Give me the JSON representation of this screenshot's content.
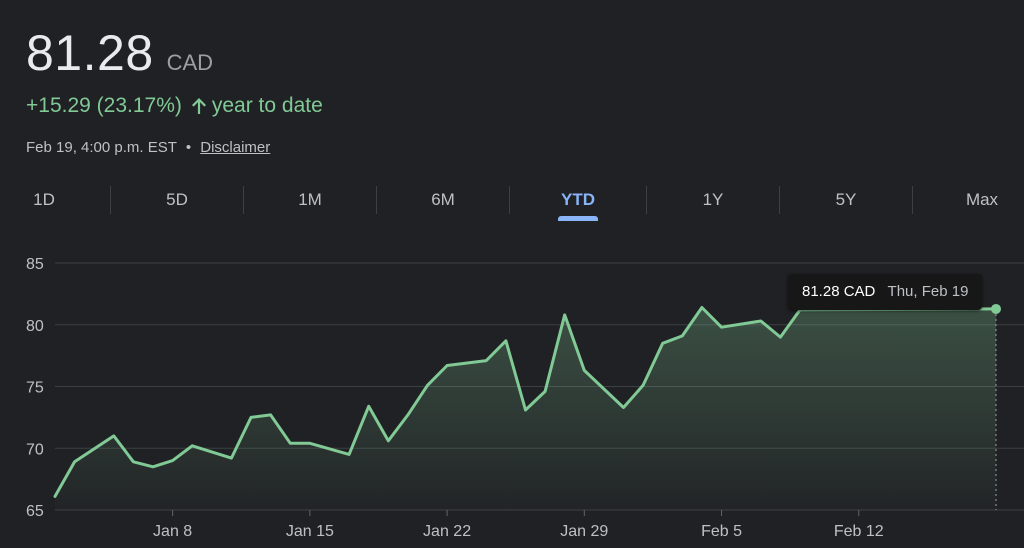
{
  "quote": {
    "price": "81.28",
    "currency": "CAD",
    "change": "+15.29 (23.17%)",
    "period_label": "year to date",
    "timestamp": "Feb 19, 4:00 p.m. EST",
    "separator": "•",
    "disclaimer_label": "Disclaimer",
    "positive_color": "#81c995"
  },
  "range_tabs": [
    {
      "label": "1D",
      "active": false
    },
    {
      "label": "5D",
      "active": false
    },
    {
      "label": "1M",
      "active": false
    },
    {
      "label": "6M",
      "active": false
    },
    {
      "label": "YTD",
      "active": true
    },
    {
      "label": "1Y",
      "active": false
    },
    {
      "label": "5Y",
      "active": false
    },
    {
      "label": "Max",
      "active": false
    }
  ],
  "tooltip": {
    "price": "81.28 CAD",
    "date": "Thu, Feb 19"
  },
  "chart_data": {
    "type": "area",
    "xlabel": "",
    "ylabel": "",
    "ylim": [
      65,
      85
    ],
    "yticks": [
      65,
      70,
      75,
      80,
      85
    ],
    "xlim": [
      "2026-01-02",
      "2026-02-19"
    ],
    "xticks": [
      {
        "label": "Jan 8",
        "date": "2026-01-08"
      },
      {
        "label": "Jan 15",
        "date": "2026-01-15"
      },
      {
        "label": "Jan 22",
        "date": "2026-01-22"
      },
      {
        "label": "Jan 29",
        "date": "2026-01-29"
      },
      {
        "label": "Feb 5",
        "date": "2026-02-05"
      },
      {
        "label": "Feb 12",
        "date": "2026-02-12"
      }
    ],
    "grid": true,
    "line_color": "#81c995",
    "points": [
      {
        "x": "2026-01-02",
        "y": 66.1
      },
      {
        "x": "2026-01-03",
        "y": 68.9
      },
      {
        "x": "2026-01-05",
        "y": 71.0
      },
      {
        "x": "2026-01-06",
        "y": 68.9
      },
      {
        "x": "2026-01-07",
        "y": 68.5
      },
      {
        "x": "2026-01-08",
        "y": 69.0
      },
      {
        "x": "2026-01-09",
        "y": 70.2
      },
      {
        "x": "2026-01-11",
        "y": 69.2
      },
      {
        "x": "2026-01-12",
        "y": 72.5
      },
      {
        "x": "2026-01-13",
        "y": 72.7
      },
      {
        "x": "2026-01-14",
        "y": 70.4
      },
      {
        "x": "2026-01-15",
        "y": 70.4
      },
      {
        "x": "2026-01-17",
        "y": 69.5
      },
      {
        "x": "2026-01-18",
        "y": 73.4
      },
      {
        "x": "2026-01-19",
        "y": 70.6
      },
      {
        "x": "2026-01-20",
        "y": 72.7
      },
      {
        "x": "2026-01-21",
        "y": 75.1
      },
      {
        "x": "2026-01-22",
        "y": 76.7
      },
      {
        "x": "2026-01-24",
        "y": 77.1
      },
      {
        "x": "2026-01-25",
        "y": 78.7
      },
      {
        "x": "2026-01-26",
        "y": 73.1
      },
      {
        "x": "2026-01-27",
        "y": 74.6
      },
      {
        "x": "2026-01-28",
        "y": 80.8
      },
      {
        "x": "2026-01-29",
        "y": 76.3
      },
      {
        "x": "2026-01-31",
        "y": 73.3
      },
      {
        "x": "2026-02-01",
        "y": 75.1
      },
      {
        "x": "2026-02-02",
        "y": 78.5
      },
      {
        "x": "2026-02-03",
        "y": 79.1
      },
      {
        "x": "2026-02-04",
        "y": 81.4
      },
      {
        "x": "2026-02-05",
        "y": 79.8
      },
      {
        "x": "2026-02-07",
        "y": 80.3
      },
      {
        "x": "2026-02-08",
        "y": 79.0
      },
      {
        "x": "2026-02-09",
        "y": 81.2
      },
      {
        "x": "2026-02-19",
        "y": 81.28
      }
    ]
  }
}
